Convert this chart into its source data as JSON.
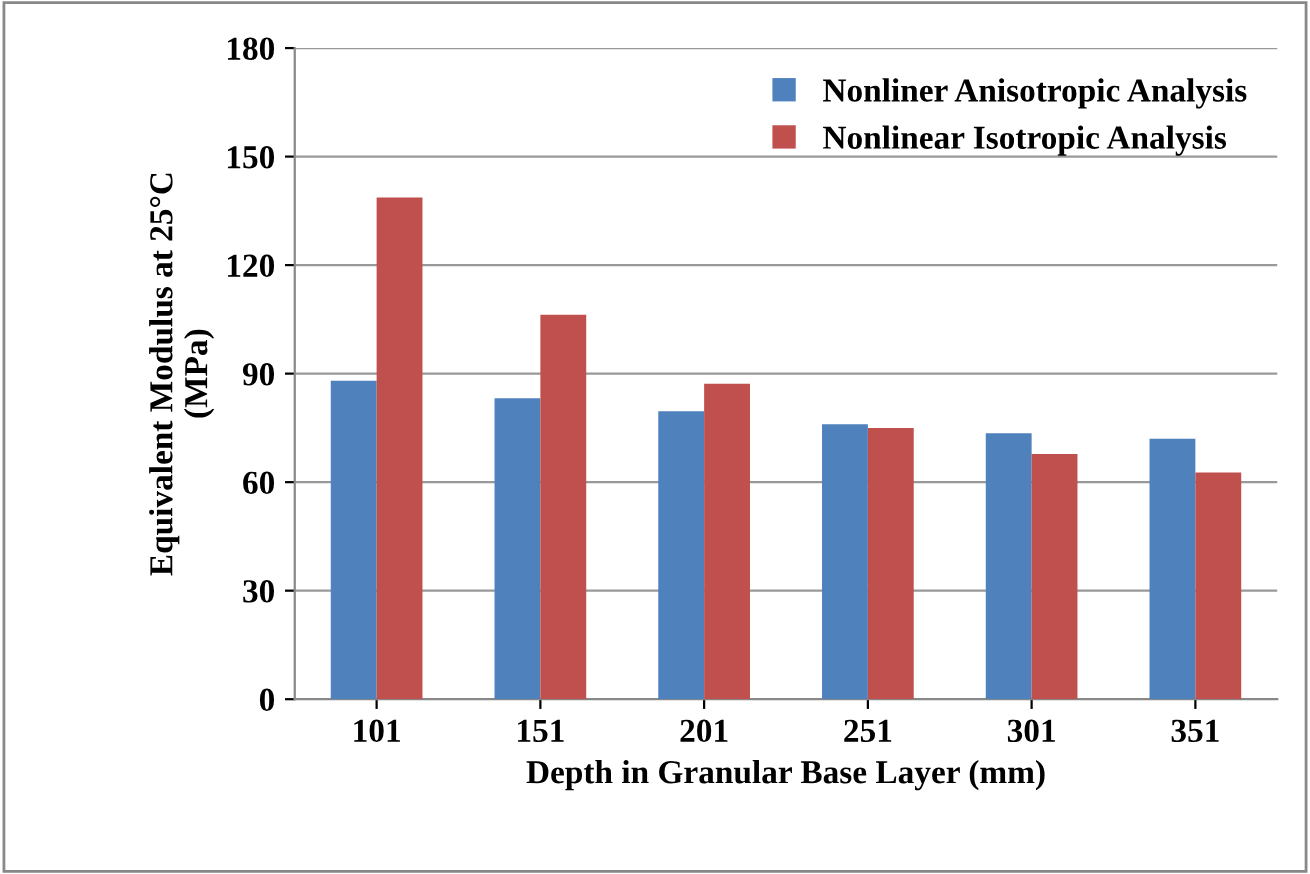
{
  "chart_data": {
    "type": "bar",
    "xlabel": "Depth in Granular Base Layer (mm)",
    "ylabel": "Equivalent Modulus at 25°C\n(MPa)",
    "categories": [
      "101",
      "151",
      "201",
      "251",
      "301",
      "351"
    ],
    "series": [
      {
        "name": "Nonliner Anisotropic Analysis",
        "color": "#4f81bd",
        "values": [
          88,
          83.2,
          79.6,
          76,
          73.5,
          72
        ]
      },
      {
        "name": "Nonlinear Isotropic Analysis",
        "color": "#c0504d",
        "values": [
          138.7,
          106.3,
          87.2,
          75,
          67.8,
          62.7
        ]
      }
    ],
    "ylim": [
      0,
      180
    ],
    "yticks": [
      0,
      30,
      60,
      90,
      120,
      150,
      180
    ],
    "grid": "y",
    "legend": "top right"
  }
}
